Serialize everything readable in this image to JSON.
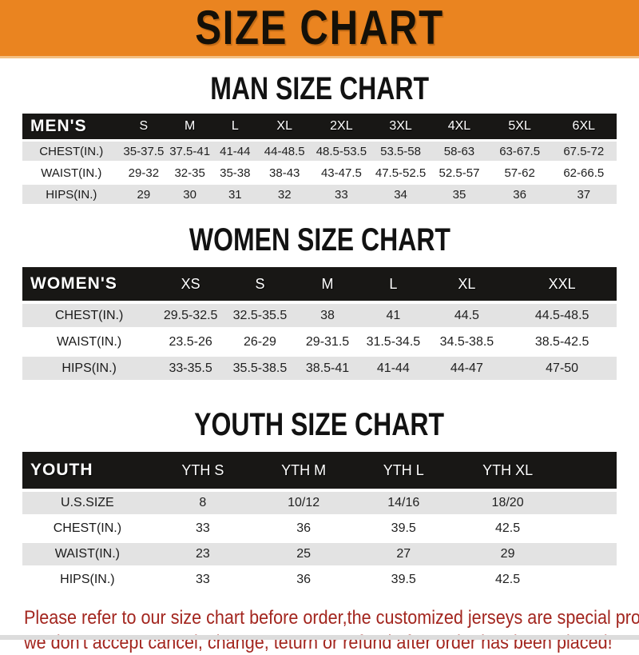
{
  "banner": {
    "title": "SIZE CHART"
  },
  "colors": {
    "banner_orange": "#EA8420",
    "header_bar_black": "#181715",
    "row_gray": "#E3E3E3",
    "footer_red": "#A3261F"
  },
  "sections": [
    {
      "id": "men",
      "heading": "MAN SIZE CHART",
      "table": {
        "header": [
          "MEN'S",
          "S",
          "M",
          "L",
          "XL",
          "2XL",
          "3XL",
          "4XL",
          "5XL",
          "6XL"
        ],
        "rows": [
          [
            "CHEST(IN.)",
            "35-37.5",
            "37.5-41",
            "41-44",
            "44-48.5",
            "48.5-53.5",
            "53.5-58",
            "58-63",
            "63-67.5",
            "67.5-72"
          ],
          [
            "WAIST(IN.)",
            "29-32",
            "32-35",
            "35-38",
            "38-43",
            "43-47.5",
            "47.5-52.5",
            "52.5-57",
            "57-62",
            "62-66.5"
          ],
          [
            "HIPS(IN.)",
            "29",
            "30",
            "31",
            "32",
            "33",
            "34",
            "35",
            "36",
            "37"
          ]
        ]
      }
    },
    {
      "id": "women",
      "heading": "WOMEN SIZE CHART",
      "table": {
        "header": [
          "WOMEN'S",
          "XS",
          "S",
          "M",
          "L",
          "XL",
          "XXL"
        ],
        "rows": [
          [
            "CHEST(IN.)",
            "29.5-32.5",
            "32.5-35.5",
            "38",
            "41",
            "44.5",
            "44.5-48.5"
          ],
          [
            "WAIST(IN.)",
            "23.5-26",
            "26-29",
            "29-31.5",
            "31.5-34.5",
            "34.5-38.5",
            "38.5-42.5"
          ],
          [
            "HIPS(IN.)",
            "33-35.5",
            "35.5-38.5",
            "38.5-41",
            "41-44",
            "44-47",
            "47-50"
          ]
        ]
      }
    },
    {
      "id": "youth",
      "heading": "YOUTH SIZE CHART",
      "table": {
        "header": [
          "YOUTH",
          "YTH S",
          "YTH M",
          "YTH L",
          "YTH XL",
          ""
        ],
        "rows": [
          [
            "U.S.SIZE",
            "8",
            "10/12",
            "14/16",
            "18/20",
            ""
          ],
          [
            "CHEST(IN.)",
            "33",
            "36",
            "39.5",
            "42.5",
            ""
          ],
          [
            "WAIST(IN.)",
            "23",
            "25",
            "27",
            "29",
            ""
          ],
          [
            "HIPS(IN.)",
            "33",
            "36",
            "39.5",
            "42.5",
            ""
          ]
        ]
      }
    }
  ],
  "footer": {
    "line1": "Please refer to our size chart before order,the customized jerseys are special products,",
    "line2": "we don't accept cancel, change, teturn or refund after order has been placed!"
  }
}
